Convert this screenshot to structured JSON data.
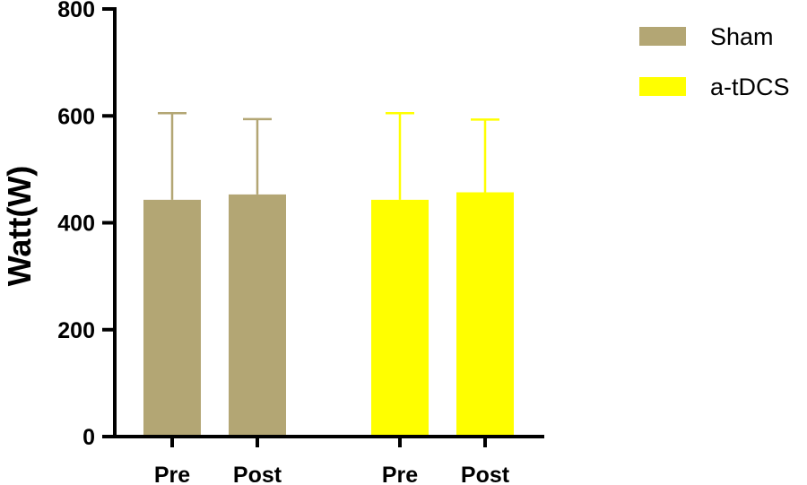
{
  "chart_data": {
    "type": "bar",
    "ylabel": "Watt(W)",
    "ylim": [
      0,
      800
    ],
    "yticks": [
      0,
      200,
      400,
      600,
      800
    ],
    "groups": [
      {
        "name": "Sham",
        "color": "#b3a674",
        "bars": [
          {
            "category": "Pre",
            "value": 443,
            "error": 162
          },
          {
            "category": "Post",
            "value": 453,
            "error": 141
          }
        ]
      },
      {
        "name": "a-tDCS",
        "color": "#ffff00",
        "bars": [
          {
            "category": "Pre",
            "value": 443,
            "error": 162
          },
          {
            "category": "Post",
            "value": 457,
            "error": 136
          }
        ]
      }
    ],
    "legend": {
      "position": "top-right",
      "entries": [
        {
          "label": "Sham",
          "color": "#b3a674"
        },
        {
          "label": "a-tDCS",
          "color": "#ffff00"
        }
      ]
    },
    "grid": false
  }
}
